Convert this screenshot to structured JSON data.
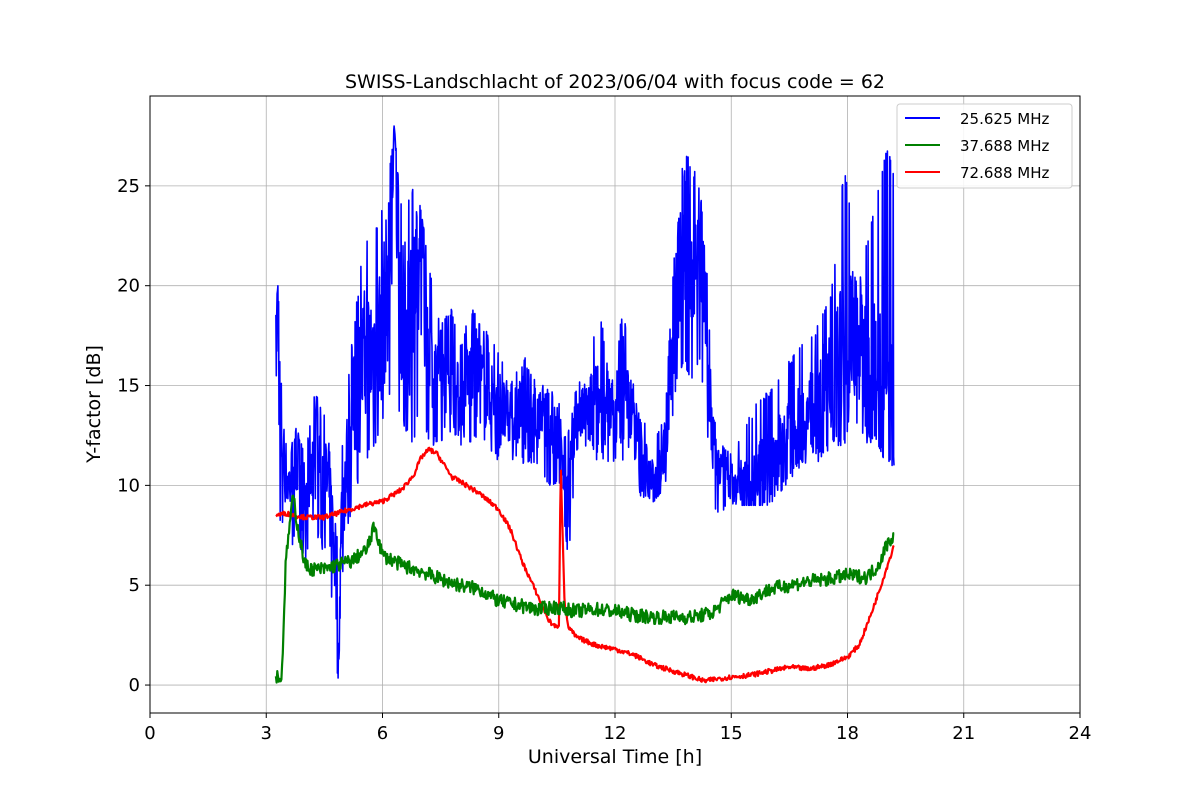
{
  "chart_data": {
    "type": "line",
    "title": "SWISS-Landschlacht of 2023/06/04 with focus code = 62",
    "xlabel": "Universal Time [h]",
    "ylabel": "Y-factor [dB]",
    "xlim": [
      0,
      24
    ],
    "ylim": [
      -1.4,
      29.5
    ],
    "xticks": [
      0,
      3,
      6,
      9,
      12,
      15,
      18,
      21,
      24
    ],
    "yticks": [
      0,
      5,
      10,
      15,
      20,
      25
    ],
    "grid": true,
    "legend_position": "top-right",
    "series": [
      {
        "name": "25.625 MHz",
        "color": "#0000ff",
        "x": [
          3.25,
          3.3,
          3.35,
          3.45,
          3.6,
          3.8,
          4.0,
          4.2,
          4.4,
          4.6,
          4.8,
          4.85,
          4.95,
          5.2,
          5.5,
          5.8,
          6.0,
          6.25,
          6.3,
          6.5,
          6.8,
          7.0,
          7.2,
          7.5,
          7.8,
          8.0,
          8.3,
          8.6,
          9.0,
          9.3,
          9.6,
          10.0,
          10.3,
          10.6,
          10.8,
          11.0,
          11.3,
          11.6,
          11.9,
          12.2,
          12.5,
          12.8,
          13.0,
          13.3,
          13.6,
          13.8,
          14.0,
          14.2,
          14.4,
          14.5,
          14.7,
          15.0,
          15.3,
          15.6,
          16.0,
          16.4,
          16.8,
          17.2,
          17.6,
          17.9,
          18.2,
          18.5,
          18.8,
          19.0,
          19.2
        ],
        "y": [
          17,
          20,
          14,
          11,
          10,
          11,
          9,
          12,
          11,
          10,
          6,
          0,
          9,
          13,
          16,
          17,
          18,
          22,
          28,
          18,
          19,
          21,
          17,
          15,
          15,
          14,
          16,
          15,
          14,
          13,
          14,
          13,
          13,
          12,
          10,
          13,
          14,
          14,
          13,
          15,
          13,
          11,
          10,
          12,
          20,
          22,
          21,
          23,
          16,
          12,
          11,
          10,
          10,
          10,
          11,
          12,
          13,
          14,
          15,
          16,
          18,
          16,
          15,
          14,
          13
        ],
        "hi": [
          19,
          20,
          18,
          13,
          12,
          13,
          12,
          15,
          14,
          13,
          10,
          5,
          12,
          17,
          22,
          23,
          24,
          27,
          28,
          24,
          25,
          24,
          21,
          18,
          19,
          17,
          19,
          18,
          17,
          15,
          17,
          15,
          15,
          14,
          13,
          15,
          16,
          19,
          15,
          19,
          15,
          13,
          12,
          14,
          24,
          27,
          26,
          25,
          20,
          14,
          12,
          12,
          13,
          14,
          15,
          16,
          17,
          18,
          20,
          26,
          23,
          22,
          25,
          27,
          26
        ],
        "lo": [
          9,
          8,
          8,
          8,
          7,
          7,
          6,
          8,
          7,
          6,
          2,
          0,
          5,
          9,
          11,
          12,
          13,
          15,
          15,
          13,
          12,
          14,
          12,
          12,
          12,
          12,
          12,
          12,
          11,
          11,
          11,
          11,
          10,
          10,
          6,
          11,
          12,
          11,
          11,
          11,
          10,
          9,
          9,
          10,
          15,
          16,
          15,
          16,
          12,
          9,
          8,
          9,
          9,
          9,
          9,
          10,
          11,
          11,
          12,
          12,
          13,
          12,
          12,
          11,
          11
        ]
      },
      {
        "name": "37.688 MHz",
        "color": "#008000",
        "x": [
          3.25,
          3.4,
          3.5,
          3.6,
          3.7,
          3.8,
          3.9,
          4.0,
          4.2,
          4.5,
          4.8,
          5.2,
          5.6,
          5.8,
          6.0,
          6.5,
          7.0,
          7.5,
          8.0,
          8.5,
          9.0,
          9.5,
          10.0,
          10.5,
          11.0,
          11.5,
          12.0,
          12.5,
          13.0,
          13.5,
          14.0,
          14.5,
          15.0,
          15.5,
          16.0,
          16.5,
          17.0,
          17.5,
          18.0,
          18.5,
          18.8,
          19.0,
          19.2
        ],
        "y": [
          0.5,
          0.3,
          6,
          8,
          9.5,
          8,
          7,
          6,
          5.8,
          5.8,
          6,
          6.2,
          6.8,
          8,
          6.5,
          6,
          5.7,
          5.3,
          5,
          4.8,
          4.2,
          4,
          3.8,
          3.9,
          3.7,
          3.8,
          3.7,
          3.5,
          3.4,
          3.4,
          3.4,
          3.6,
          4.5,
          4.3,
          4.8,
          5.0,
          5.2,
          5.3,
          5.5,
          5.4,
          6,
          7,
          7.5
        ]
      },
      {
        "name": "72.688 MHz",
        "color": "#ff0000",
        "x": [
          3.25,
          3.5,
          4.0,
          4.5,
          5.0,
          5.5,
          6.0,
          6.5,
          6.8,
          7.0,
          7.2,
          7.4,
          7.6,
          7.8,
          8.0,
          8.5,
          9.0,
          9.3,
          9.6,
          10.0,
          10.3,
          10.55,
          10.6,
          10.7,
          10.8,
          11.0,
          11.5,
          12.0,
          12.5,
          13.0,
          13.5,
          14.0,
          14.3,
          14.6,
          15.0,
          15.5,
          16.0,
          16.5,
          17.0,
          17.5,
          18.0,
          18.3,
          18.6,
          18.9,
          19.2
        ],
        "y": [
          8.5,
          8.6,
          8.4,
          8.4,
          8.7,
          9.0,
          9.2,
          9.8,
          10.5,
          11.4,
          11.8,
          11.6,
          11.0,
          10.4,
          10.2,
          9.6,
          8.8,
          7.8,
          6.2,
          4.5,
          3.2,
          2.8,
          11,
          4,
          2.9,
          2.4,
          2.0,
          1.8,
          1.5,
          1.0,
          0.7,
          0.4,
          0.2,
          0.3,
          0.4,
          0.5,
          0.7,
          0.9,
          0.8,
          1.0,
          1.4,
          2.0,
          3.5,
          5.2,
          7.0
        ]
      }
    ]
  }
}
